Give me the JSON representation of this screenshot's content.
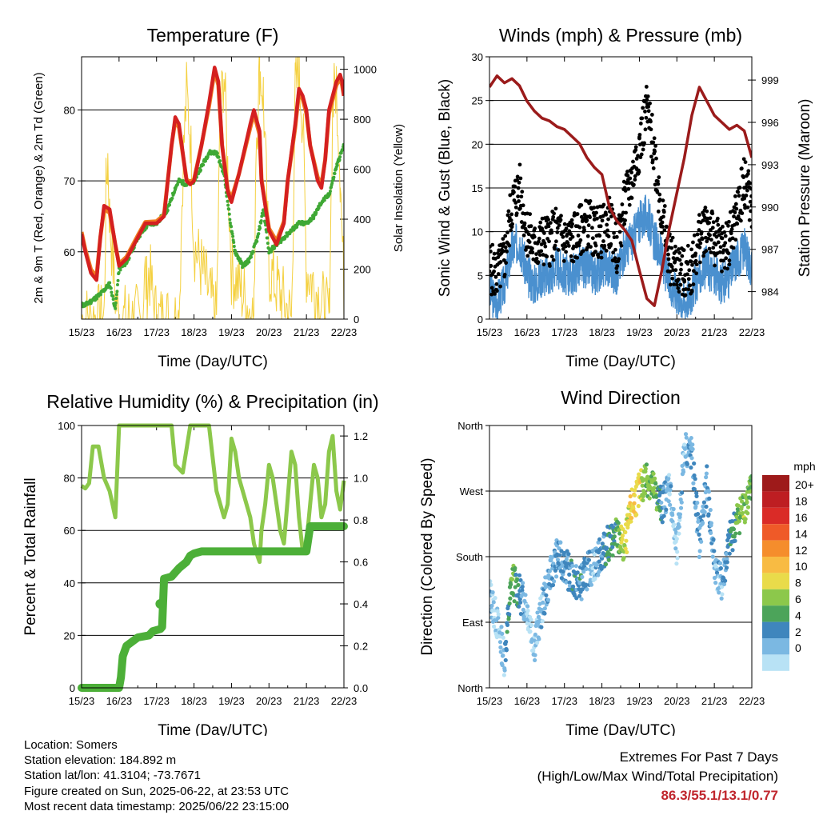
{
  "chart_data": [
    {
      "type": "line",
      "title": "Temperature (F)",
      "xlabel": "Time (Day/UTC)",
      "ylabel_left": "2m & 9m T (Red, Orange) & 2m Td (Green)",
      "ylabel_right": "Solar Insolation (Yellow)",
      "x_ticks": [
        "15/23",
        "16/23",
        "17/23",
        "18/23",
        "19/23",
        "20/23",
        "21/23",
        "22/23"
      ],
      "ylim": [
        50.5,
        87.5
      ],
      "yticks": [
        60,
        70,
        80
      ],
      "y2lim": [
        0,
        1050
      ],
      "y2ticks": [
        0,
        200,
        400,
        600,
        800,
        1000
      ],
      "grid": true,
      "series": [
        {
          "name": "2m T",
          "color": "#d42020",
          "x": [
            0,
            0.1,
            0.25,
            0.4,
            0.5,
            0.6,
            0.75,
            0.9,
            1.0,
            1.2,
            1.5,
            1.7,
            2.0,
            2.2,
            2.4,
            2.5,
            2.6,
            2.8,
            2.9,
            3.0,
            3.2,
            3.4,
            3.55,
            3.65,
            3.75,
            3.9,
            4.0,
            4.2,
            4.5,
            4.6,
            4.75,
            4.8,
            5.0,
            5.2,
            5.4,
            5.5,
            5.7,
            5.8,
            5.9,
            6.0,
            6.1,
            6.3,
            6.4,
            6.5,
            6.6,
            6.8,
            6.9,
            6.95,
            7.0
          ],
          "values": [
            62.5,
            60,
            57,
            56,
            62,
            66.5,
            66,
            61,
            58,
            59,
            62,
            64,
            64,
            65,
            75,
            79,
            78,
            70,
            69.5,
            70,
            75,
            81,
            86,
            84,
            75,
            68.5,
            67,
            71,
            78,
            80,
            77,
            70,
            63,
            61,
            64,
            70,
            78,
            83,
            82,
            80,
            75,
            70,
            69,
            73,
            80,
            84,
            85,
            84,
            82
          ]
        },
        {
          "name": "9m T",
          "color": "#f07a20",
          "x": [
            0,
            0.1,
            0.25,
            0.4,
            0.5,
            0.6,
            0.75,
            0.9,
            1.0,
            1.2,
            1.5,
            1.7,
            2.0,
            2.2,
            2.4,
            2.5,
            2.6,
            2.8,
            2.9,
            3.0,
            3.2,
            3.4,
            3.55,
            3.65,
            3.75,
            3.9,
            4.0,
            4.2,
            4.5,
            4.6,
            4.75,
            4.8,
            5.0,
            5.2,
            5.4,
            5.5,
            5.7,
            5.8,
            5.9,
            6.0,
            6.1,
            6.3,
            6.4,
            6.5,
            6.6,
            6.8,
            6.9,
            6.95,
            7.0
          ],
          "values": [
            62.8,
            60.3,
            57.5,
            56.5,
            62,
            66,
            65.5,
            61,
            58.3,
            59.3,
            62.3,
            64.2,
            64.3,
            65.2,
            75,
            78.5,
            77.5,
            70.2,
            69.8,
            70.2,
            75,
            80.5,
            85.5,
            83.5,
            75,
            68.8,
            67.5,
            71,
            77.5,
            79.5,
            76.5,
            70.3,
            63.3,
            61.5,
            64.3,
            70,
            77.5,
            82.5,
            81.5,
            79.5,
            75,
            70.5,
            69.5,
            73,
            79.5,
            83.5,
            84.5,
            83.5,
            82
          ]
        },
        {
          "name": "2m Td",
          "color": "#3fa835",
          "x": [
            0,
            0.1,
            0.25,
            0.5,
            0.75,
            0.9,
            1.0,
            1.2,
            1.5,
            1.8,
            2.0,
            2.3,
            2.5,
            2.6,
            2.8,
            3.0,
            3.2,
            3.4,
            3.6,
            3.8,
            4.0,
            4.1,
            4.3,
            4.5,
            4.7,
            4.85,
            5.0,
            5.2,
            5.4,
            5.6,
            5.8,
            6.0,
            6.2,
            6.4,
            6.6,
            6.8,
            7.0
          ],
          "values": [
            52.5,
            52.5,
            53,
            54,
            55.5,
            52,
            57.5,
            58.5,
            62,
            64,
            64,
            66,
            69,
            70,
            69.5,
            70,
            72,
            74,
            74,
            71,
            63,
            60,
            58,
            59,
            62,
            66,
            60,
            61,
            62,
            63,
            64,
            64,
            65,
            67,
            68,
            72,
            75
          ]
        },
        {
          "name": "Solar Insolation",
          "color": "#f4d03f",
          "axis": "right",
          "x": [
            0,
            0.3,
            0.6,
            0.65,
            0.7,
            0.75,
            0.8,
            0.9,
            1.0,
            1.6,
            1.7,
            1.75,
            1.8,
            1.9,
            2.0,
            2.6,
            2.7,
            2.8,
            2.9,
            3.0,
            3.6,
            3.7,
            3.8,
            3.9,
            4.0,
            4.6,
            4.65,
            4.75,
            4.85,
            5.0,
            5.6,
            5.7,
            5.8,
            5.9,
            6.0,
            6.6,
            6.7,
            6.8,
            6.9,
            7.0
          ],
          "values": [
            0,
            0,
            0,
            500,
            650,
            400,
            300,
            100,
            0,
            0,
            180,
            100,
            200,
            80,
            0,
            0,
            600,
            900,
            750,
            300,
            0,
            800,
            1000,
            600,
            200,
            0,
            700,
            1000,
            900,
            200,
            0,
            900,
            1000,
            800,
            200,
            0,
            850,
            950,
            600,
            100
          ]
        }
      ]
    },
    {
      "type": "scatter",
      "title": "Winds (mph) & Pressure (mb)",
      "xlabel": "Time (Day/UTC)",
      "ylabel_left": "Sonic Wind & Gust (Blue, Black)",
      "ylabel_right": "Station Pressure (Maroon)",
      "x_ticks": [
        "15/23",
        "16/23",
        "17/23",
        "18/23",
        "19/23",
        "20/23",
        "21/23",
        "22/23"
      ],
      "ylim": [
        0,
        30
      ],
      "yticks": [
        0,
        5,
        10,
        15,
        20,
        25,
        30
      ],
      "y2lim": [
        982.05,
        1000.65
      ],
      "y2ticks": [
        984,
        987,
        990,
        993,
        996,
        999
      ],
      "grid": true,
      "series": [
        {
          "name": "Sonic Wind",
          "color": "#4a90cf",
          "x": [
            0,
            0.2,
            0.4,
            0.6,
            0.8,
            1.0,
            1.2,
            1.4,
            1.6,
            1.8,
            2.0,
            2.2,
            2.4,
            2.6,
            2.8,
            3.0,
            3.2,
            3.4,
            3.6,
            3.8,
            4.0,
            4.2,
            4.4,
            4.6,
            4.8,
            5.0,
            5.2,
            5.4,
            5.6,
            5.8,
            6.0,
            6.2,
            6.4,
            6.6,
            6.8,
            7.0
          ],
          "values": [
            3,
            2,
            4,
            8,
            9,
            5,
            4,
            5,
            5,
            6,
            5,
            5,
            6,
            6,
            5,
            6,
            6,
            5,
            8,
            9,
            11,
            12,
            9,
            7,
            4,
            3,
            2,
            3,
            5,
            6,
            5,
            4,
            5,
            7,
            8,
            6
          ]
        },
        {
          "name": "Gust",
          "color": "#000000",
          "x": [
            0,
            0.2,
            0.4,
            0.6,
            0.8,
            1.0,
            1.2,
            1.4,
            1.6,
            1.8,
            2.0,
            2.2,
            2.4,
            2.6,
            2.8,
            3.0,
            3.2,
            3.4,
            3.6,
            3.8,
            4.0,
            4.2,
            4.4,
            4.6,
            4.8,
            5.0,
            5.2,
            5.4,
            5.6,
            5.8,
            6.0,
            6.2,
            6.4,
            6.6,
            6.8,
            7.0
          ],
          "values": [
            6,
            5,
            7,
            13,
            15,
            10,
            8,
            9,
            9,
            10,
            9,
            9,
            10,
            11,
            10,
            10,
            11,
            8,
            13,
            16,
            20,
            24,
            19,
            12,
            7,
            6,
            5,
            6,
            9,
            11,
            9,
            8,
            9,
            12,
            16,
            13
          ]
        },
        {
          "name": "Station Pressure",
          "color": "#9b1b1b",
          "axis": "right",
          "x": [
            0,
            0.2,
            0.4,
            0.6,
            0.8,
            1.0,
            1.2,
            1.4,
            1.6,
            1.8,
            2.0,
            2.2,
            2.4,
            2.6,
            2.8,
            3.0,
            3.2,
            3.4,
            3.6,
            3.8,
            4.0,
            4.2,
            4.4,
            4.6,
            4.8,
            5.0,
            5.2,
            5.4,
            5.6,
            5.8,
            6.0,
            6.2,
            6.4,
            6.6,
            6.8,
            7.0
          ],
          "values": [
            998.5,
            999.3,
            998.8,
            999.1,
            998.6,
            997.5,
            996.8,
            996.3,
            996.1,
            995.7,
            995.5,
            995.0,
            994.5,
            993.5,
            992.8,
            992.3,
            990.0,
            989.0,
            988.4,
            987.6,
            985.5,
            983.5,
            983.0,
            985.5,
            988.5,
            991.0,
            993.5,
            996.5,
            998.5,
            997.5,
            996.5,
            996.0,
            995.5,
            995.8,
            995.4,
            993.5
          ]
        }
      ]
    },
    {
      "type": "line",
      "title": "Relative Humidity (%) & Precipitation (in)",
      "xlabel": "Time (Day/UTC)",
      "ylabel_left": "Percent & Total Rainfall",
      "x_ticks": [
        "15/23",
        "16/23",
        "17/23",
        "18/23",
        "19/23",
        "20/23",
        "21/23",
        "22/23"
      ],
      "ylim": [
        0,
        100
      ],
      "yticks": [
        0,
        20,
        40,
        60,
        80,
        100
      ],
      "y2lim": [
        0,
        1.25
      ],
      "y2ticks": [
        0.0,
        0.2,
        0.4,
        0.6,
        0.8,
        1.0,
        1.2
      ],
      "grid": true,
      "series": [
        {
          "name": "Relative Humidity",
          "color": "#8cc84b",
          "x": [
            0,
            0.1,
            0.2,
            0.3,
            0.45,
            0.6,
            0.75,
            0.9,
            1.0,
            1.1,
            1.2,
            1.3,
            1.6,
            1.8,
            2.0,
            2.2,
            2.4,
            2.5,
            2.7,
            2.9,
            3.0,
            3.2,
            3.4,
            3.6,
            3.8,
            3.9,
            4.0,
            4.1,
            4.2,
            4.4,
            4.5,
            4.6,
            4.7,
            4.75,
            4.8,
            4.9,
            5.0,
            5.1,
            5.2,
            5.3,
            5.4,
            5.5,
            5.6,
            5.7,
            5.8,
            5.9,
            6.0,
            6.1,
            6.2,
            6.3,
            6.4,
            6.5,
            6.6,
            6.7,
            6.8,
            6.9,
            7.0
          ],
          "values": [
            77,
            76,
            78,
            92,
            92,
            80,
            75,
            65,
            100,
            100,
            100,
            100,
            100,
            100,
            100,
            100,
            100,
            85,
            82,
            100,
            100,
            100,
            100,
            75,
            65,
            70,
            95,
            90,
            80,
            70,
            65,
            55,
            50,
            48,
            60,
            70,
            85,
            80,
            70,
            60,
            55,
            72,
            90,
            85,
            65,
            52,
            55,
            70,
            85,
            80,
            65,
            70,
            90,
            96,
            75,
            68,
            79
          ]
        },
        {
          "name": "Total Precipitation",
          "color": "#4caf38",
          "axis": "right",
          "x": [
            0,
            0.7,
            1.0,
            1.05,
            1.1,
            1.2,
            1.5,
            1.8,
            1.9,
            2.1,
            2.15,
            2.2,
            2.4,
            2.5,
            2.6,
            2.8,
            2.9,
            3.0,
            3.2,
            3.4,
            3.6,
            3.8,
            4.0,
            4.2,
            4.4,
            4.6,
            6.0,
            6.1,
            6.3,
            6.4,
            7.0
          ],
          "values": [
            0,
            0,
            0,
            0.05,
            0.15,
            0.2,
            0.24,
            0.25,
            0.27,
            0.28,
            0.29,
            0.52,
            0.53,
            0.55,
            0.57,
            0.6,
            0.63,
            0.64,
            0.65,
            0.65,
            0.65,
            0.65,
            0.65,
            0.65,
            0.65,
            0.65,
            0.65,
            0.77,
            0.77,
            0.77,
            0.77
          ]
        }
      ]
    },
    {
      "type": "scatter",
      "title": "Wind Direction",
      "xlabel": "Time (Day/UTC)",
      "ylabel": "Direction (Colored By Speed)",
      "x_ticks": [
        "15/23",
        "16/23",
        "17/23",
        "18/23",
        "19/23",
        "20/23",
        "21/23",
        "22/23"
      ],
      "y_tick_labels": [
        "North",
        "East",
        "South",
        "West",
        "North"
      ],
      "ylim": [
        0,
        360
      ],
      "grid": true,
      "legend": "right",
      "colorbar_title": "mph",
      "colorbar_labels": [
        "20+",
        "18",
        "16",
        "14",
        "12",
        "10",
        "8",
        "6",
        "4",
        "2",
        "0"
      ],
      "colorbar_colors": [
        "#9e1a1a",
        "#be1e22",
        "#da2b27",
        "#ef5a28",
        "#f58d2c",
        "#f8bb43",
        "#e9db4a",
        "#8cc84b",
        "#4ca45a",
        "#3f86bd",
        "#7bb8e2",
        "#b8e2f5"
      ],
      "series": [
        {
          "name": "Wind Direction",
          "x": [
            0,
            0.2,
            0.4,
            0.6,
            0.8,
            1.0,
            1.2,
            1.4,
            1.6,
            1.8,
            2.0,
            2.2,
            2.4,
            2.6,
            2.8,
            3.0,
            3.2,
            3.4,
            3.6,
            3.8,
            4.0,
            4.2,
            4.4,
            4.6,
            4.8,
            5.0,
            5.2,
            5.4,
            5.6,
            5.8,
            6.0,
            6.2,
            6.4,
            6.6,
            6.8,
            7.0
          ],
          "values": [
            130,
            90,
            40,
            150,
            130,
            110,
            60,
            110,
            150,
            180,
            170,
            150,
            140,
            160,
            170,
            185,
            200,
            210,
            190,
            250,
            270,
            290,
            270,
            250,
            280,
            180,
            330,
            320,
            200,
            280,
            170,
            140,
            200,
            230,
            250,
            270
          ],
          "speed": [
            3,
            2,
            3,
            8,
            6,
            2,
            2,
            3,
            4,
            4,
            4,
            5,
            5,
            4,
            3,
            5,
            6,
            7,
            10,
            12,
            11,
            9,
            8,
            5,
            3,
            2,
            3,
            4,
            4,
            4,
            3,
            3,
            5,
            7,
            9,
            8
          ]
        }
      ]
    }
  ],
  "footer": {
    "location": "Location: Somers",
    "elevation": "Station elevation: 184.892 m",
    "latlon": "Station lat/lon: 41.3104; -73.7671",
    "created": "Figure created on Sun, 2025-06-22, at 23:53 UTC",
    "recent": "Most recent data timestamp: 2025/06/22 23:15:00",
    "extremes_title": "Extremes For Past 7 Days",
    "extremes_sub": "(High/Low/Max Wind/Total Precipitation)",
    "extremes_values": "86.3/55.1/13.1/0.77"
  }
}
